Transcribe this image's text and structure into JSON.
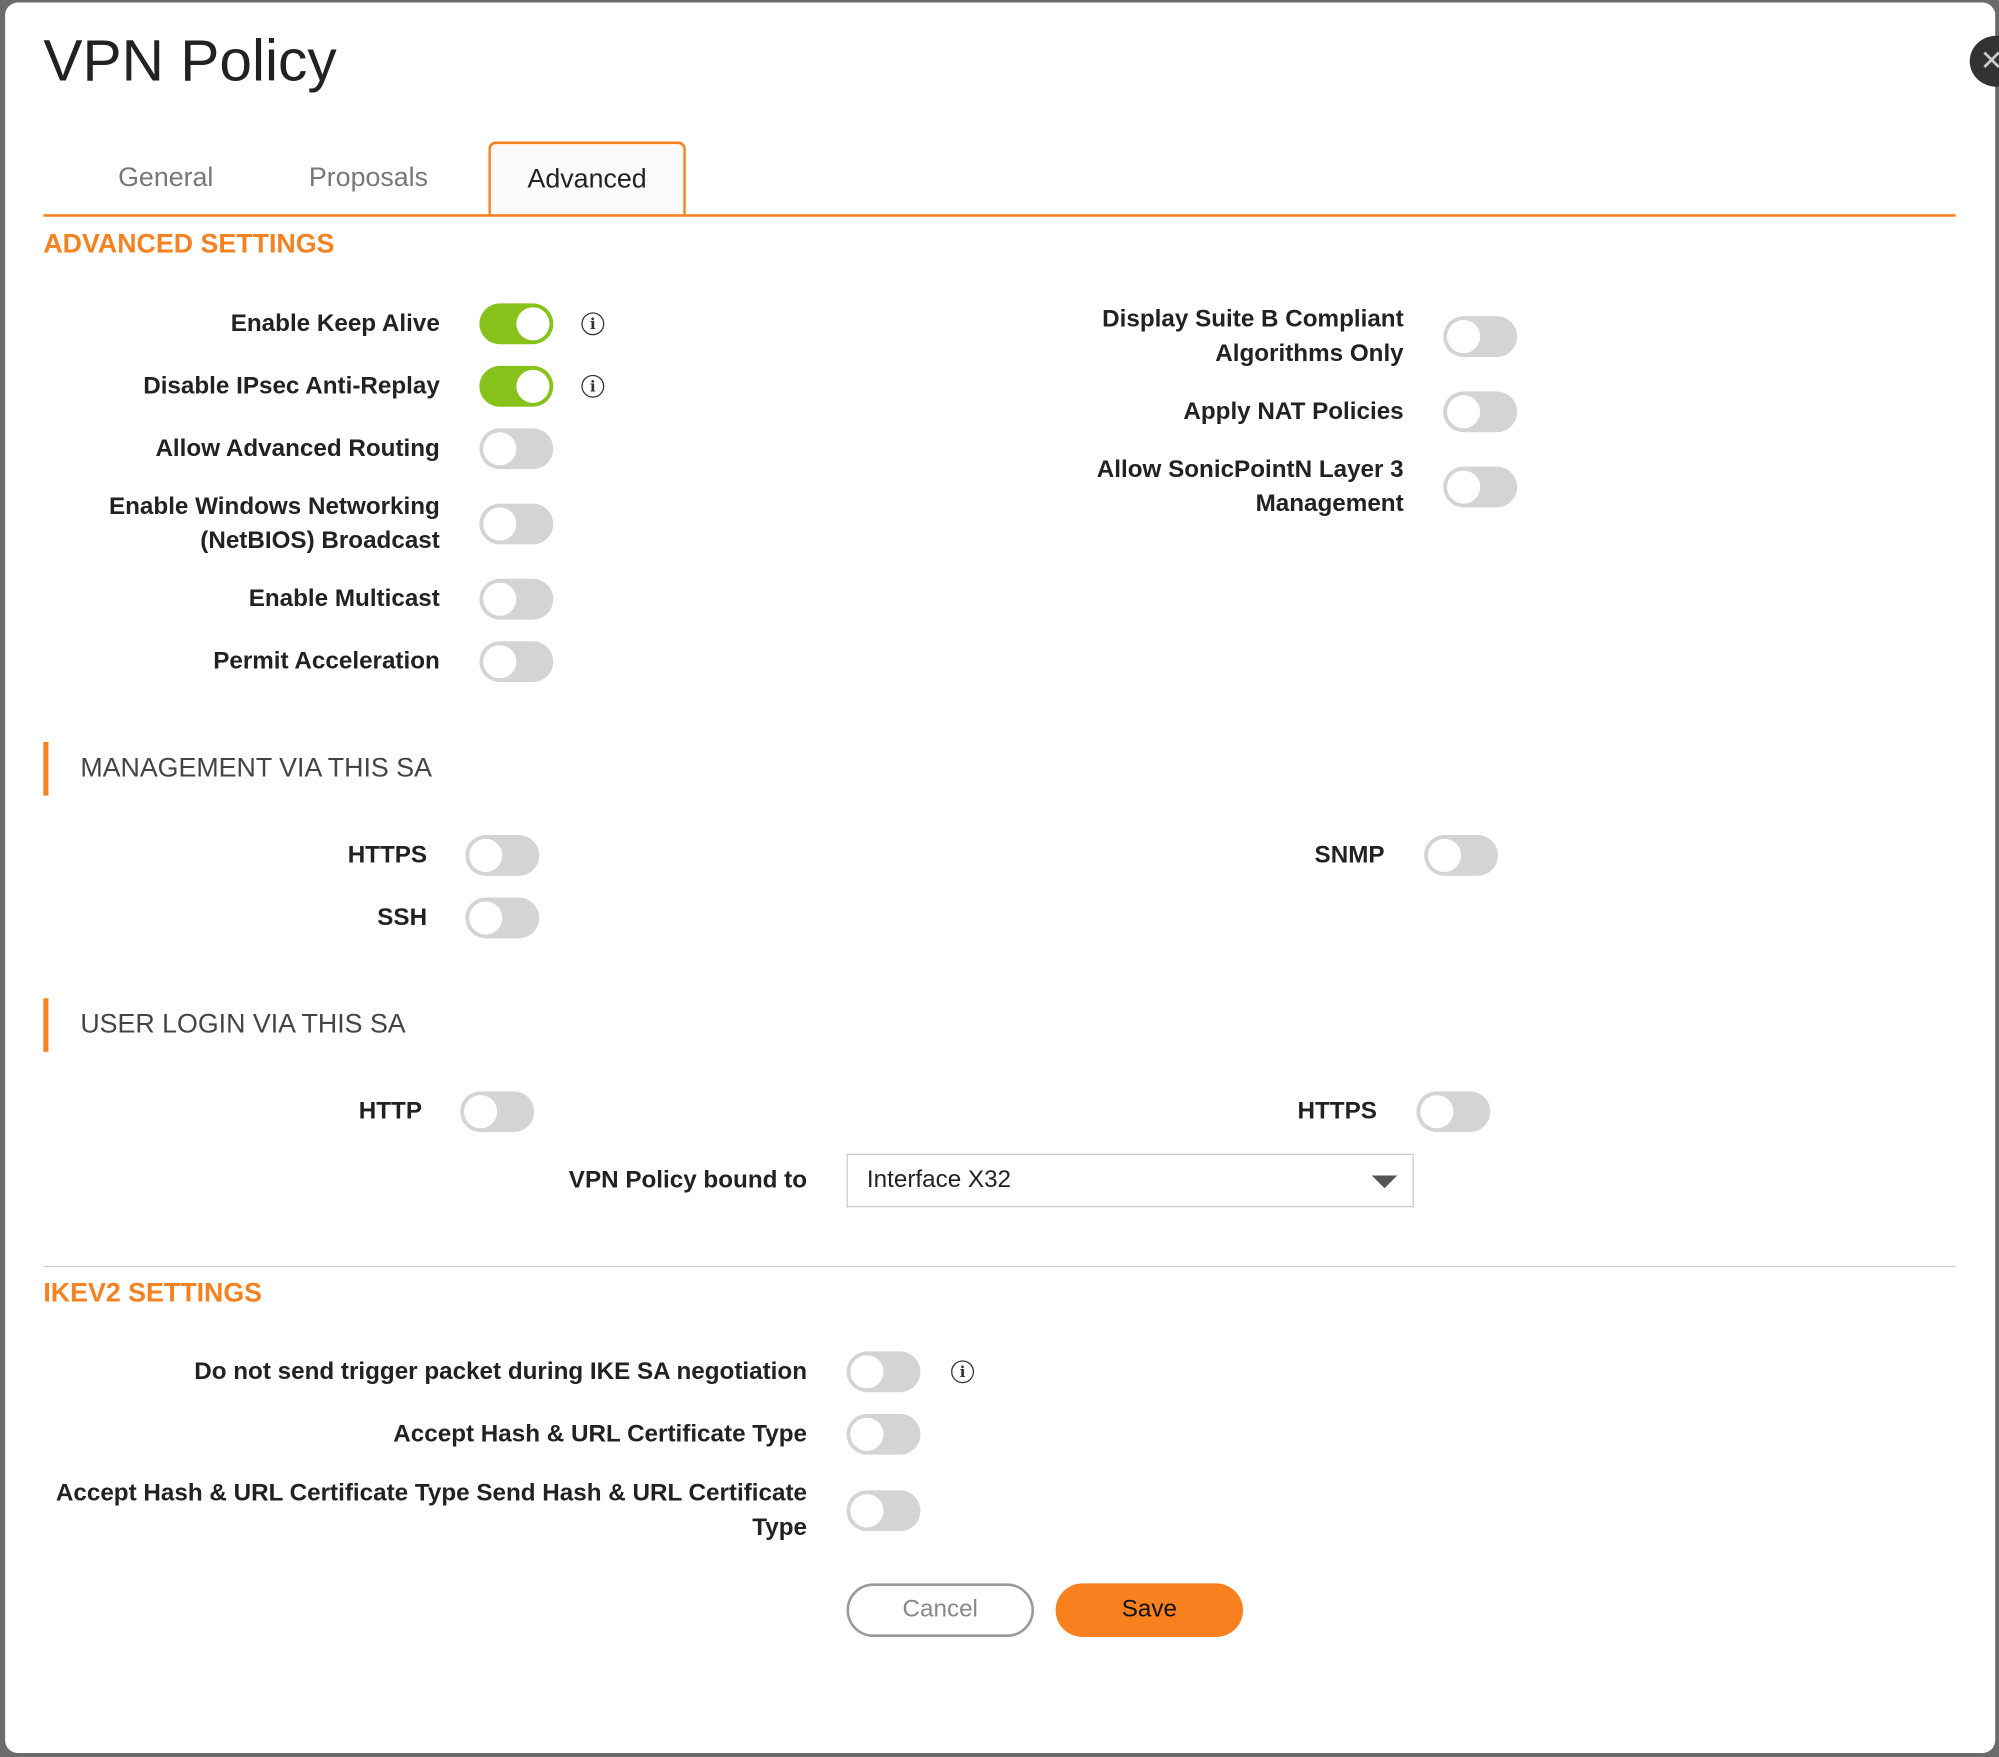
{
  "title": "VPN Policy",
  "tabs": [
    {
      "label": "General"
    },
    {
      "label": "Proposals"
    },
    {
      "label": "Advanced",
      "active": true
    }
  ],
  "advanced": {
    "heading": "ADVANCED SETTINGS",
    "left": [
      {
        "label": "Enable Keep Alive",
        "on": true,
        "info": true
      },
      {
        "label": "Disable IPsec Anti-Replay",
        "on": true,
        "info": true
      },
      {
        "label": "Allow Advanced Routing",
        "on": false
      },
      {
        "label": "Enable Windows Networking (NetBIOS) Broadcast",
        "on": false
      },
      {
        "label": "Enable Multicast",
        "on": false
      },
      {
        "label": "Permit Acceleration",
        "on": false
      }
    ],
    "right": [
      {
        "label": "Display Suite B Compliant Algorithms Only",
        "on": false
      },
      {
        "label": "Apply NAT Policies",
        "on": false
      },
      {
        "label": "Allow SonicPointN Layer 3 Management",
        "on": false
      }
    ]
  },
  "management": {
    "heading": "MANAGEMENT VIA THIS SA",
    "items": [
      {
        "label": "HTTPS",
        "on": false
      },
      {
        "label": "SSH",
        "on": false
      },
      {
        "label": "SNMP",
        "on": false
      }
    ]
  },
  "user_login": {
    "heading": "USER LOGIN VIA THIS SA",
    "items": [
      {
        "label": "HTTP",
        "on": false
      },
      {
        "label": "HTTPS",
        "on": false
      }
    ],
    "bound_label": "VPN Policy bound to",
    "bound_value": "Interface X32"
  },
  "ikev2": {
    "heading": "IKEV2 SETTINGS",
    "items": [
      {
        "label": "Do not send trigger packet during IKE SA negotiation",
        "on": false,
        "info": true
      },
      {
        "label": "Accept Hash & URL Certificate Type",
        "on": false
      },
      {
        "label": "Accept Hash & URL Certificate Type Send Hash & URL Certificate Type",
        "on": false
      }
    ]
  },
  "buttons": {
    "cancel": "Cancel",
    "save": "Save"
  },
  "colors": {
    "accent": "#f58220",
    "toggle_on": "#86c21a",
    "toggle_off": "#d4d4d4"
  },
  "icons": {
    "info": "info-circle-icon",
    "close": "close-icon"
  }
}
